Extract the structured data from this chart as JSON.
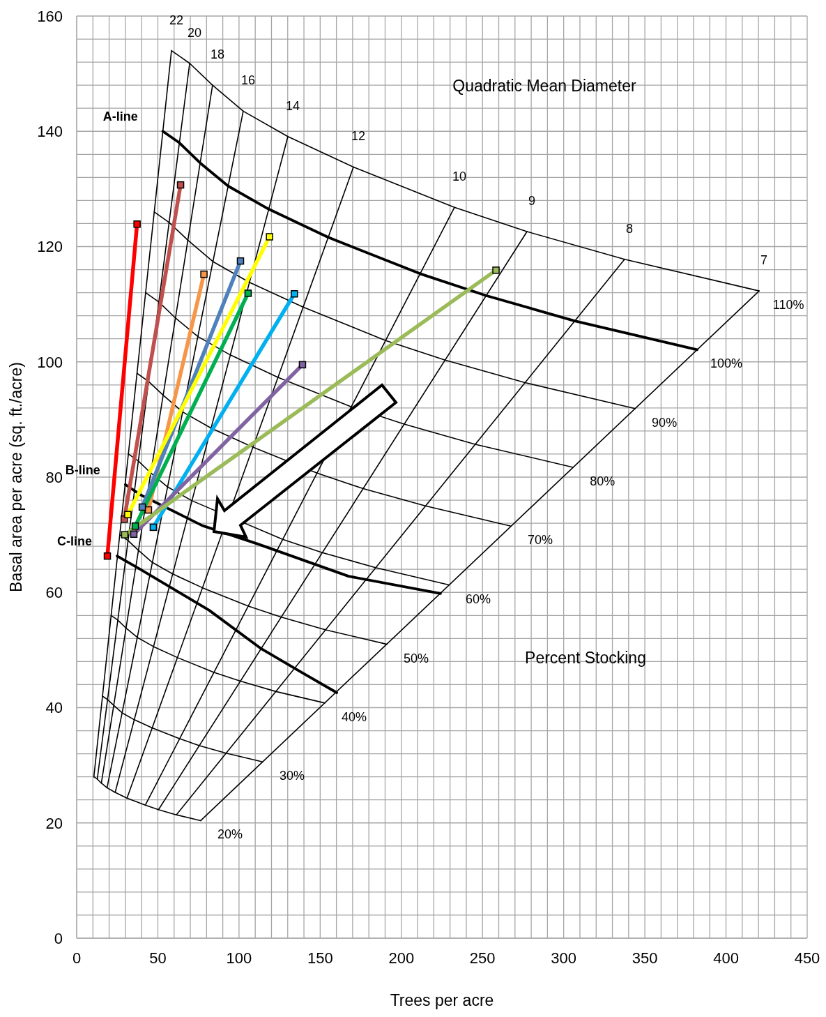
{
  "chart_data": {
    "type": "line",
    "xlabel": "Trees per acre",
    "ylabel": "Basal area per acre (sq. ft./acre)",
    "xlim": [
      0,
      450
    ],
    "xticks": [
      0,
      {
        "value": 10,
        "label": null
      },
      {
        "value": 20,
        "label": null
      },
      {
        "value": 30,
        "label": null
      },
      {
        "value": 40,
        "label": null
      },
      50,
      {
        "value": 60,
        "label": null
      },
      {
        "value": 70,
        "label": null
      },
      {
        "value": 80,
        "label": null
      },
      {
        "value": 90,
        "label": null
      },
      100,
      {
        "value": 110,
        "label": null
      },
      {
        "value": 120,
        "label": null
      },
      {
        "value": 130,
        "label": null
      },
      {
        "value": 140,
        "label": null
      },
      150,
      {
        "value": 160,
        "label": null
      },
      {
        "value": 170,
        "label": null
      },
      {
        "value": 180,
        "label": null
      },
      {
        "value": 190,
        "label": null
      },
      200,
      {
        "value": 210,
        "label": null
      },
      {
        "value": 220,
        "label": null
      },
      {
        "value": 230,
        "label": null
      },
      {
        "value": 240,
        "label": null
      },
      250,
      {
        "value": 260,
        "label": null
      },
      {
        "value": 270,
        "label": null
      },
      {
        "value": 280,
        "label": null
      },
      {
        "value": 290,
        "label": null
      },
      300,
      {
        "value": 310,
        "label": null
      },
      {
        "value": 320,
        "label": null
      },
      {
        "value": 330,
        "label": null
      },
      {
        "value": 340,
        "label": null
      },
      350,
      {
        "value": 360,
        "label": null
      },
      {
        "value": 370,
        "label": null
      },
      {
        "value": 380,
        "label": null
      },
      {
        "value": 390,
        "label": null
      },
      400,
      {
        "value": 410,
        "label": null
      },
      {
        "value": 420,
        "label": null
      },
      {
        "value": 430,
        "label": null
      },
      {
        "value": 440,
        "label": null
      },
      450
    ],
    "ylim": [
      0,
      160
    ],
    "yticks": [
      0,
      {
        "value": 4,
        "label": null
      },
      {
        "value": 8,
        "label": null
      },
      {
        "value": 12,
        "label": null
      },
      {
        "value": 16,
        "label": null
      },
      20,
      {
        "value": 24,
        "label": null
      },
      {
        "value": 28,
        "label": null
      },
      {
        "value": 32,
        "label": null
      },
      {
        "value": 36,
        "label": null
      },
      40,
      {
        "value": 44,
        "label": null
      },
      {
        "value": 48,
        "label": null
      },
      {
        "value": 52,
        "label": null
      },
      {
        "value": 56,
        "label": null
      },
      60,
      {
        "value": 64,
        "label": null
      },
      {
        "value": 68,
        "label": null
      },
      {
        "value": 72,
        "label": null
      },
      {
        "value": 76,
        "label": null
      },
      80,
      {
        "value": 84,
        "label": null
      },
      {
        "value": 88,
        "label": null
      },
      {
        "value": 92,
        "label": null
      },
      {
        "value": 96,
        "label": null
      },
      100,
      {
        "value": 104,
        "label": null
      },
      {
        "value": 108,
        "label": null
      },
      {
        "value": 112,
        "label": null
      },
      {
        "value": 116,
        "label": null
      },
      120,
      {
        "value": 124,
        "label": null
      },
      {
        "value": 128,
        "label": null
      },
      {
        "value": 132,
        "label": null
      },
      {
        "value": 136,
        "label": null
      },
      140,
      {
        "value": 144,
        "label": null
      },
      {
        "value": 148,
        "label": null
      },
      {
        "value": 152,
        "label": null
      },
      {
        "value": 156,
        "label": null
      },
      160
    ],
    "grid": true,
    "series": [
      {
        "name": "22",
        "color": "#000000",
        "x": [
          10.6,
          58.4
        ],
        "values": [
          28.0,
          154.0
        ]
      },
      {
        "name": "20",
        "color": "#000000",
        "x": [
          12.7,
          69.6
        ],
        "values": [
          27.6,
          151.8
        ]
      },
      {
        "name": "18",
        "color": "#000000",
        "x": [
          15.2,
          83.7
        ],
        "values": [
          26.9,
          148.0
        ]
      },
      {
        "name": "16",
        "color": "#000000",
        "x": [
          18.7,
          102.6
        ],
        "values": [
          26.1,
          143.5
        ]
      },
      {
        "name": "14",
        "color": "#000000",
        "x": [
          23.7,
          130.1
        ],
        "values": [
          25.3,
          139.1
        ]
      },
      {
        "name": "12",
        "color": "#000000",
        "x": [
          31.0,
          170.5
        ],
        "values": [
          24.3,
          133.8
        ]
      },
      {
        "name": "10",
        "color": "#000000",
        "x": [
          42.3,
          232.7
        ],
        "values": [
          23.1,
          126.8
        ]
      },
      {
        "name": "9",
        "color": "#000000",
        "x": [
          50.4,
          277.4
        ],
        "values": [
          22.3,
          122.6
        ]
      },
      {
        "name": "8",
        "color": "#000000",
        "x": [
          61.4,
          337.5
        ],
        "values": [
          21.4,
          117.8
        ]
      },
      {
        "name": "7",
        "color": "#000000",
        "x": [
          76.4,
          420.4
        ],
        "values": [
          20.4,
          112.3
        ]
      },
      {
        "name": "110%",
        "color": "#000000",
        "x": [
          58.4,
          69.6,
          83.7,
          102.6,
          130.1,
          170.5,
          232.7,
          277.4,
          337.5,
          420.4
        ],
        "values": [
          154.0,
          151.8,
          148.0,
          143.5,
          139.1,
          133.8,
          126.8,
          122.6,
          117.8,
          112.3
        ]
      },
      {
        "name": "100%",
        "color": "#000000",
        "x": [
          53.1,
          63.3,
          76.1,
          93.3,
          118.3,
          155.0,
          211.5,
          252.2,
          306.8,
          382.2
        ],
        "values": [
          140.0,
          138.0,
          134.5,
          130.5,
          126.5,
          121.6,
          115.3,
          111.5,
          107.1,
          102.1
        ]
      },
      {
        "name": "90%",
        "color": "#000000",
        "x": [
          47.8,
          56.9,
          68.5,
          83.9,
          106.4,
          139.5,
          190.4,
          227.0,
          276.1,
          344.0
        ],
        "values": [
          126.0,
          124.2,
          121.1,
          117.4,
          113.8,
          109.5,
          103.7,
          100.3,
          96.4,
          91.9
        ]
      },
      {
        "name": "80%",
        "color": "#000000",
        "x": [
          42.5,
          50.6,
          60.9,
          74.6,
          94.6,
          124.0,
          169.2,
          201.7,
          245.5,
          305.8
        ],
        "values": [
          112.0,
          110.4,
          107.6,
          104.4,
          101.2,
          97.3,
          92.2,
          89.2,
          85.7,
          81.7
        ]
      },
      {
        "name": "70%",
        "color": "#000000",
        "x": [
          37.2,
          44.3,
          53.3,
          65.3,
          82.8,
          108.5,
          148.1,
          176.5,
          214.8,
          267.5
        ],
        "values": [
          98.0,
          96.6,
          94.2,
          91.3,
          88.5,
          85.2,
          80.7,
          78.0,
          75.0,
          71.5
        ]
      },
      {
        "name": "60%",
        "color": "#000000",
        "x": [
          31.9,
          38.0,
          45.7,
          56.0,
          71.0,
          93.0,
          126.9,
          151.3,
          184.1,
          229.3
        ],
        "values": [
          84.0,
          82.8,
          80.7,
          78.3,
          75.9,
          null,
          69.2,
          66.9,
          64.3,
          61.3
        ]
      },
      {
        "name": "50%",
        "color": "#000000",
        "x": [
          26.5,
          31.6,
          38.0,
          46.6,
          59.1,
          77.5,
          105.8,
          126.1,
          153.4,
          191.1
        ],
        "values": [
          70.0,
          69.0,
          67.3,
          65.2,
          63.2,
          60.8,
          57.6,
          55.7,
          53.5,
          51.0
        ]
      },
      {
        "name": "40%",
        "color": "#000000",
        "x": [
          21.2,
          25.3,
          30.4,
          37.3,
          47.3,
          62.0,
          84.6,
          100.9,
          122.7,
          152.9
        ],
        "values": [
          56.0,
          55.2,
          53.8,
          52.2,
          50.6,
          48.7,
          46.1,
          44.6,
          42.8,
          40.8
        ]
      },
      {
        "name": "30%",
        "color": "#000000",
        "x": [
          15.9,
          19.0,
          22.8,
          28.0,
          35.5,
          46.5,
          63.5,
          75.6,
          92.0,
          114.6
        ],
        "values": [
          42.0,
          41.4,
          40.4,
          39.1,
          37.9,
          36.5,
          34.6,
          33.4,
          32.1,
          30.6
        ]
      },
      {
        "name": "20%",
        "color": "#000000",
        "x": [
          10.6,
          12.7,
          15.2,
          18.7,
          23.7,
          31.0,
          42.3,
          50.4,
          61.4,
          76.4
        ],
        "values": [
          28.0,
          27.6,
          26.9,
          26.1,
          25.3,
          24.3,
          23.1,
          22.3,
          21.4,
          20.4
        ]
      },
      {
        "color": "#000000",
        "x": [
          30.0,
          39.5,
          67.4,
          77.3,
          111.6,
          167.5,
          224.1
        ],
        "values": [
          78.7,
          76.9,
          73.0,
          71.6,
          68.4,
          62.8,
          59.8
        ]
      },
      {
        "color": "#000000",
        "x": [
          24.9,
          38.6,
          60.1,
          81.6,
          113.8,
          137.4,
          160.2
        ],
        "values": [
          66.3,
          64.1,
          60.5,
          56.9,
          50.2,
          46.3,
          42.6
        ]
      },
      {
        "color": "#ff0000",
        "marker": "square",
        "x": [
          18.9,
          37.2
        ],
        "values": [
          66.3,
          123.9
        ]
      },
      {
        "color": "#c0504d",
        "marker": "square",
        "x": [
          29.3,
          64.0
        ],
        "values": [
          72.7,
          130.7
        ]
      },
      {
        "color": "#f79646",
        "marker": "square",
        "x": [
          44.2,
          78.4
        ],
        "values": [
          74.3,
          115.2
        ]
      },
      {
        "color": "#4f81bd",
        "marker": "square",
        "x": [
          40.4,
          100.9
        ],
        "values": [
          74.8,
          117.5
        ]
      },
      {
        "color": "#ffff00",
        "marker": "square",
        "x": [
          31.5,
          118.8
        ],
        "values": [
          73.5,
          121.7
        ]
      },
      {
        "color": "#00b050",
        "marker": "square",
        "x": [
          36.1,
          105.6
        ],
        "values": [
          71.5,
          111.9
        ]
      },
      {
        "color": "#00b0f0",
        "marker": "square",
        "x": [
          47.2,
          134.1
        ],
        "values": [
          71.3,
          111.8
        ]
      },
      {
        "color": "#8064a2",
        "marker": "square",
        "x": [
          35.2,
          139.1
        ],
        "values": [
          70.1,
          99.5
        ]
      },
      {
        "color": "#9bbb59",
        "marker": "square",
        "x": [
          29.6,
          258.3
        ],
        "values": [
          70.0,
          115.9
        ]
      }
    ],
    "annotations": [
      "Quadratic Mean Diameter",
      "Percent Stocking",
      {
        "text": "A-line",
        "x": 53.1,
        "y": 140.0
      },
      {
        "text": "B-line",
        "x": 30.0,
        "y": 78.7
      },
      {
        "text": "C-line",
        "x": 24.9,
        "y": 66.3
      }
    ]
  }
}
